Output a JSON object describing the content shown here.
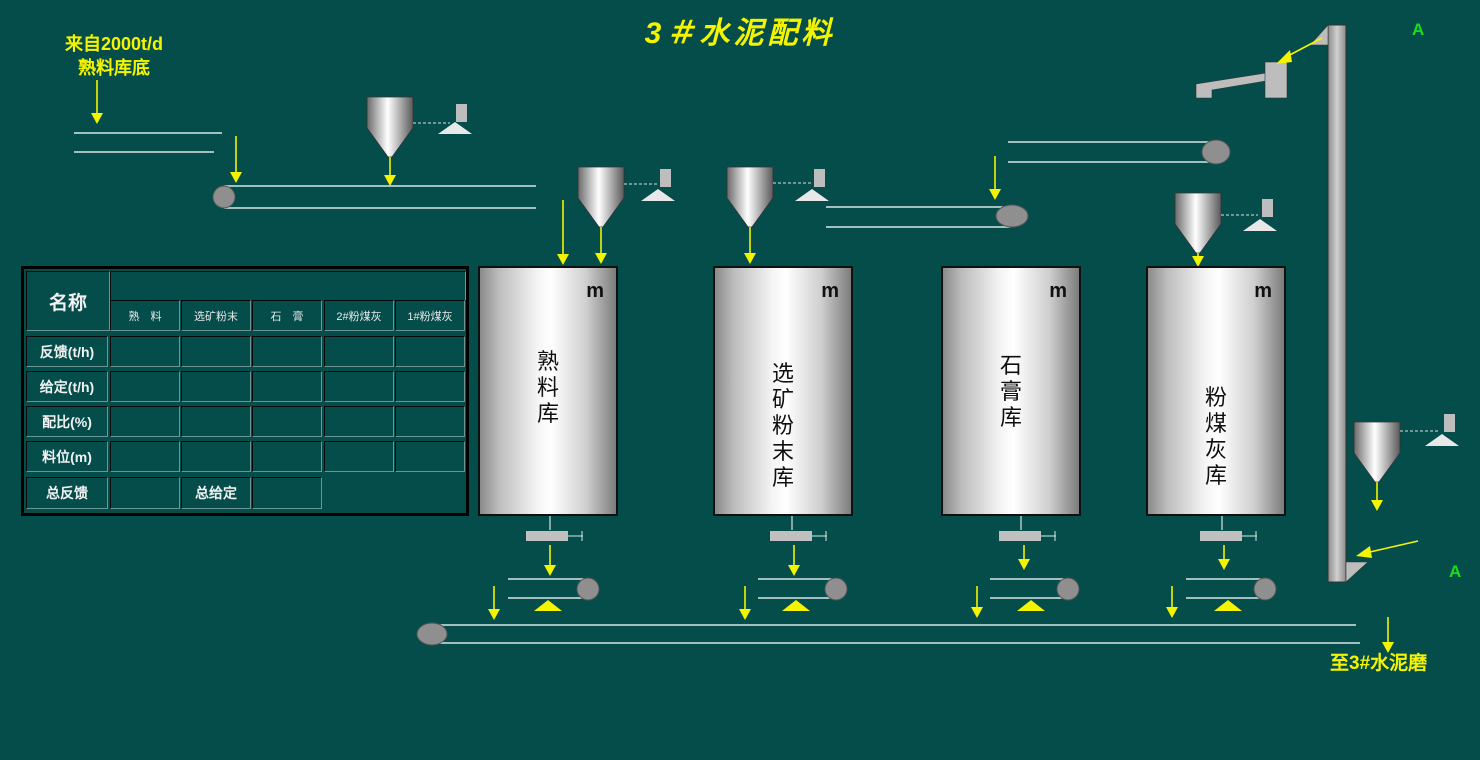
{
  "title": "3＃水泥配料",
  "source_label_line1": "来自2000t/d",
  "source_label_line2": "熟料库底",
  "destination_label": "至3#水泥磨",
  "elevator_marker_top": "A",
  "elevator_marker_bottom": "A",
  "silos": [
    {
      "unit": "m",
      "name": "熟\n\n料\n\n库"
    },
    {
      "unit": "m",
      "name": "选\n矿\n粉\n末\n库"
    },
    {
      "unit": "m",
      "name": "石\n\n膏\n\n库"
    },
    {
      "unit": "m",
      "name": "粉\n煤\n灰\n库"
    }
  ],
  "table": {
    "header": "名称",
    "columns": [
      "熟　料",
      "选矿粉末",
      "石　膏",
      "2#粉煤灰",
      "1#粉煤灰"
    ],
    "rows": [
      "反馈(t/h)",
      "给定(t/h)",
      "配比(%)",
      "料位(m)"
    ],
    "total_feedback_label": "总反馈",
    "total_setpoint_label": "总给定"
  },
  "colors": {
    "background": "#044d4a",
    "arrow": "#f4f400",
    "belt_line": "#d8e6e4",
    "marker": "#18e018"
  }
}
